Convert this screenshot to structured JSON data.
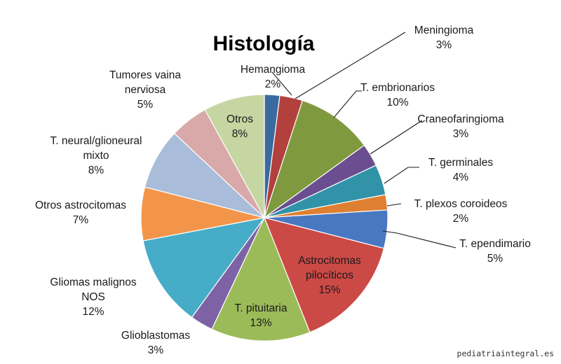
{
  "chart_data": {
    "type": "pie",
    "title": "Histología",
    "slices": [
      {
        "label": [
          "Hemangioma"
        ],
        "value": 2,
        "value_label": "2%",
        "color": "#3b6aa0"
      },
      {
        "label": [
          "Meningioma"
        ],
        "value": 3,
        "value_label": "3%",
        "color": "#b2403c"
      },
      {
        "label": [
          "T. embrionarios"
        ],
        "value": 10,
        "value_label": "10%",
        "color": "#7f9a3e"
      },
      {
        "label": [
          "Craneofaringioma"
        ],
        "value": 3,
        "value_label": "3%",
        "color": "#6a4e8f"
      },
      {
        "label": [
          "T. germinales"
        ],
        "value": 4,
        "value_label": "4%",
        "color": "#3193a8"
      },
      {
        "label": [
          "T. plexos coroideos"
        ],
        "value": 2,
        "value_label": "2%",
        "color": "#de7f31"
      },
      {
        "label": [
          "T. ependimario"
        ],
        "value": 5,
        "value_label": "5%",
        "color": "#4a78c0"
      },
      {
        "label": [
          "Astrocitomas",
          "pilocíticos"
        ],
        "value": 15,
        "value_label": "15%",
        "color": "#cc4a46"
      },
      {
        "label": [
          "T. pituitaria"
        ],
        "value": 13,
        "value_label": "13%",
        "color": "#9bbb58"
      },
      {
        "label": [
          "Glioblastomas"
        ],
        "value": 3,
        "value_label": "3%",
        "color": "#7d63a5"
      },
      {
        "label": [
          "Gliomas malignos",
          "NOS"
        ],
        "value": 12,
        "value_label": "12%",
        "color": "#46acc7"
      },
      {
        "label": [
          "Otros astrocitomas"
        ],
        "value": 7,
        "value_label": "7%",
        "color": "#f2954a"
      },
      {
        "label": [
          "T. neural/glioneural",
          "mixto"
        ],
        "value": 8,
        "value_label": "8%",
        "color": "#a9bcd9"
      },
      {
        "label": [
          "Tumores vaina",
          "nerviosa"
        ],
        "value": 5,
        "value_label": "5%",
        "color": "#d8a9a8"
      },
      {
        "label": [
          "Otros"
        ],
        "value": 8,
        "value_label": "8%",
        "color": "#c5d6a2"
      }
    ]
  },
  "watermark": "pediatriaintegral.es"
}
